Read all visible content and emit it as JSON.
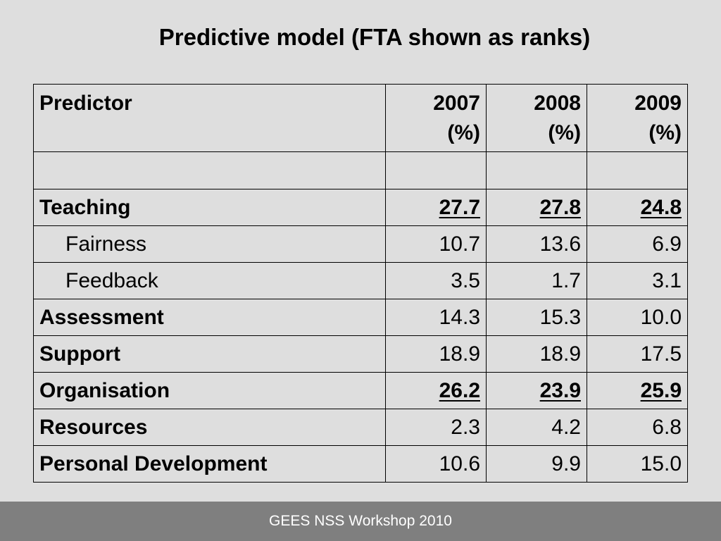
{
  "title": "Predictive model (FTA shown as ranks)",
  "footer": "GEES NSS Workshop 2010",
  "table": {
    "header": {
      "label": "Predictor",
      "years": [
        {
          "year": "2007",
          "unit": "(%)"
        },
        {
          "year": "2008",
          "unit": "(%)"
        },
        {
          "year": "2009",
          "unit": "(%)"
        }
      ]
    },
    "rows": [
      {
        "label": "Teaching",
        "values": [
          "27.7",
          "27.8",
          "24.8"
        ]
      },
      {
        "label": "Fairness",
        "values": [
          "10.7",
          "13.6",
          "6.9"
        ]
      },
      {
        "label": "Feedback",
        "values": [
          "3.5",
          "1.7",
          "3.1"
        ]
      },
      {
        "label": "Assessment",
        "values": [
          "14.3",
          "15.3",
          "10.0"
        ]
      },
      {
        "label": "Support",
        "values": [
          "18.9",
          "18.9",
          "17.5"
        ]
      },
      {
        "label": "Organisation",
        "values": [
          "26.2",
          "23.9",
          "25.9"
        ]
      },
      {
        "label": "Resources",
        "values": [
          "2.3",
          "4.2",
          "6.8"
        ]
      },
      {
        "label": "Personal Development",
        "values": [
          "10.6",
          "9.9",
          "15.0"
        ]
      }
    ]
  }
}
